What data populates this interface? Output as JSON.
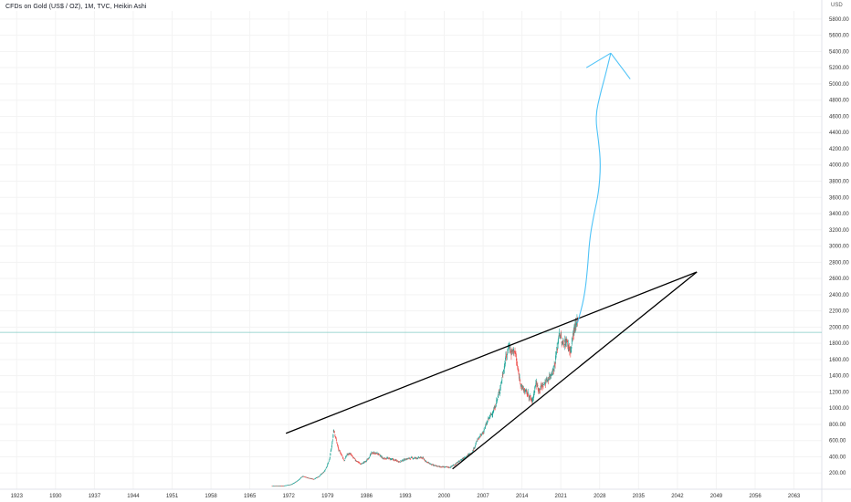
{
  "chart_data": {
    "type": "candlestick",
    "title": "CFDs on Gold (US$ / OZ), 1M, TVC, Heikin Ashi",
    "currency": "USD",
    "ylim": [
      0,
      5900
    ],
    "xlim": [
      1920,
      2068
    ],
    "y_ticks": [
      200,
      400,
      600,
      800,
      1000,
      1200,
      1400,
      1600,
      1800,
      2000,
      2200,
      2400,
      2600,
      2800,
      3000,
      3200,
      3400,
      3600,
      3800,
      4000,
      4200,
      4400,
      4600,
      4800,
      5000,
      5200,
      5400,
      5600,
      5800
    ],
    "y_tick_labels": [
      "200.00",
      "400.00",
      "600.00",
      "800.00",
      "1000.00",
      "1200.00",
      "1400.00",
      "1600.00",
      "1800.00",
      "2000.00",
      "2200.00",
      "2400.00",
      "2600.00",
      "2800.00",
      "3000.00",
      "3200.00",
      "3400.00",
      "3600.00",
      "3800.00",
      "4000.00",
      "4200.00",
      "4400.00",
      "4600.00",
      "4800.00",
      "5000.00",
      "5200.00",
      "5400.00",
      "5600.00",
      "5800.00"
    ],
    "x_ticks": [
      "1923",
      "1930",
      "1937",
      "1944",
      "1951",
      "1958",
      "1965",
      "1972",
      "1979",
      "1986",
      "1993",
      "2000",
      "2007",
      "2014",
      "2021",
      "2028",
      "2035",
      "2042",
      "2049",
      "2056",
      "2063"
    ],
    "price_points": [
      [
        1969.0,
        40
      ],
      [
        1971.0,
        42
      ],
      [
        1972.5,
        60
      ],
      [
        1973.5,
        100
      ],
      [
        1974.5,
        160
      ],
      [
        1975.5,
        140
      ],
      [
        1976.5,
        125
      ],
      [
        1977.5,
        160
      ],
      [
        1978.5,
        230
      ],
      [
        1979.3,
        350
      ],
      [
        1979.9,
        600
      ],
      [
        1980.1,
        750
      ],
      [
        1980.5,
        620
      ],
      [
        1981.0,
        480
      ],
      [
        1981.5,
        430
      ],
      [
        1982.0,
        350
      ],
      [
        1982.5,
        430
      ],
      [
        1983.0,
        440
      ],
      [
        1984.0,
        360
      ],
      [
        1985.0,
        310
      ],
      [
        1986.0,
        350
      ],
      [
        1987.0,
        450
      ],
      [
        1988.0,
        440
      ],
      [
        1989.0,
        380
      ],
      [
        1990.0,
        380
      ],
      [
        1991.0,
        360
      ],
      [
        1992.0,
        340
      ],
      [
        1993.0,
        370
      ],
      [
        1994.0,
        385
      ],
      [
        1995.0,
        385
      ],
      [
        1996.0,
        390
      ],
      [
        1997.0,
        330
      ],
      [
        1998.0,
        295
      ],
      [
        1999.0,
        280
      ],
      [
        2000.0,
        275
      ],
      [
        2001.0,
        270
      ],
      [
        2002.0,
        310
      ],
      [
        2003.0,
        360
      ],
      [
        2004.0,
        410
      ],
      [
        2005.0,
        450
      ],
      [
        2006.0,
        610
      ],
      [
        2007.0,
        700
      ],
      [
        2008.0,
        870
      ],
      [
        2009.0,
        980
      ],
      [
        2010.0,
        1220
      ],
      [
        2011.0,
        1580
      ],
      [
        2011.7,
        1800
      ],
      [
        2012.0,
        1680
      ],
      [
        2012.7,
        1720
      ],
      [
        2013.3,
        1450
      ],
      [
        2014.0,
        1250
      ],
      [
        2015.0,
        1180
      ],
      [
        2015.9,
        1080
      ],
      [
        2016.5,
        1320
      ],
      [
        2017.0,
        1230
      ],
      [
        2018.0,
        1300
      ],
      [
        2019.0,
        1390
      ],
      [
        2019.8,
        1500
      ],
      [
        2020.4,
        1750
      ],
      [
        2020.7,
        1950
      ],
      [
        2021.3,
        1780
      ],
      [
        2022.0,
        1830
      ],
      [
        2022.8,
        1700
      ],
      [
        2023.3,
        1950
      ],
      [
        2024.0,
        2050
      ]
    ],
    "trendlines": [
      {
        "x1": 1971.5,
        "y1": 690,
        "x2": 2045.5,
        "y2": 2680
      },
      {
        "x1": 2001.5,
        "y1": 250,
        "x2": 2045.5,
        "y2": 2680
      }
    ],
    "horizontal_line": 1935,
    "projection_path": [
      [
        2024.0,
        2050
      ],
      [
        2025.2,
        2350
      ],
      [
        2025.8,
        2700
      ],
      [
        2026.2,
        3100
      ],
      [
        2027.0,
        3400
      ],
      [
        2027.8,
        3650
      ],
      [
        2028.2,
        4000
      ],
      [
        2027.8,
        4300
      ],
      [
        2027.2,
        4600
      ],
      [
        2028.2,
        4900
      ],
      [
        2029.0,
        5100
      ],
      [
        2030.0,
        5380
      ]
    ],
    "projection_arrow": {
      "tip": [
        2030.0,
        5380
      ],
      "left": [
        2025.6,
        5200
      ],
      "right": [
        2033.5,
        5060
      ]
    },
    "colors": {
      "up": "#26a69a",
      "down": "#ef5350",
      "trendline": "#000000",
      "projection": "#4fc3f7",
      "horizontal_line": "#80cbc4",
      "grid": "#f3f3f3"
    }
  }
}
